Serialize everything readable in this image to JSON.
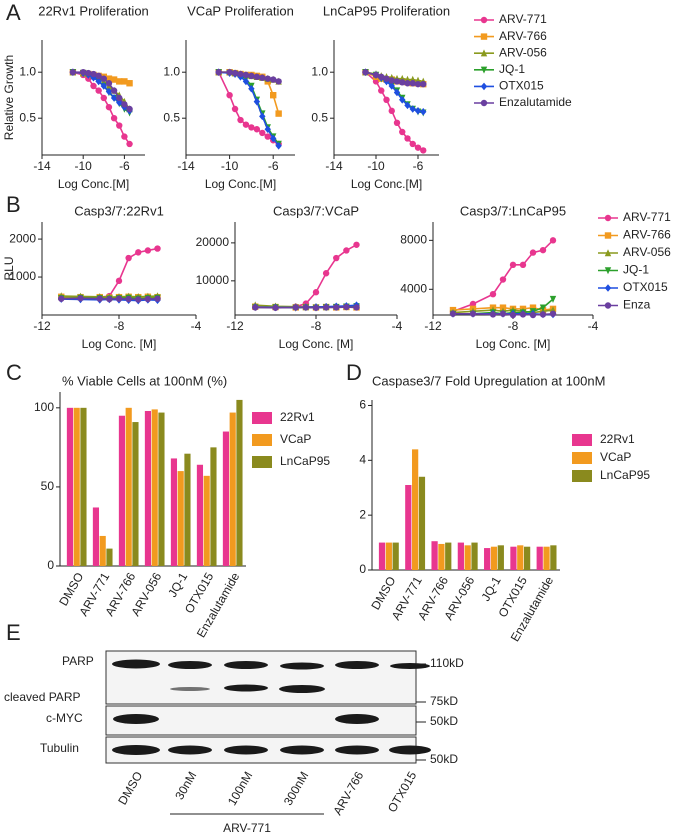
{
  "panel_labels": [
    "A",
    "B",
    "C",
    "D",
    "E"
  ],
  "chart_data": [
    {
      "type": "line",
      "title": "22Rv1 Proliferation",
      "x_label": "Log Conc.[M]",
      "y_label": "Relative Growth",
      "xlim": [
        -14,
        -4
      ],
      "xticks": [
        -14,
        -10,
        -6
      ],
      "ylim": [
        0.1,
        1.35
      ],
      "yticks": [
        0.5,
        {
          "value": 1,
          "label": "1.0"
        }
      ],
      "x": [
        -11,
        -10,
        -9.5,
        -9,
        -8.5,
        -8,
        -7.5,
        -7,
        -6.5,
        -6,
        -5.5
      ],
      "series": [
        {
          "name": "ARV-771",
          "color": "#e8368f",
          "marker": "circle",
          "values": [
            1.0,
            0.97,
            0.93,
            0.85,
            0.8,
            0.72,
            0.62,
            0.5,
            0.42,
            0.3,
            0.22
          ]
        },
        {
          "name": "ARV-766",
          "color": "#f29a1f",
          "marker": "square",
          "values": [
            1.0,
            0.99,
            0.98,
            0.97,
            0.96,
            0.95,
            0.93,
            0.92,
            0.9,
            0.9,
            0.88
          ]
        },
        {
          "name": "ARV-056",
          "color": "#8a9a1e",
          "marker": "triangle",
          "values": [
            1.0,
            0.99,
            0.98,
            0.96,
            0.93,
            0.9,
            0.85,
            0.8,
            0.75,
            0.68,
            0.6
          ]
        },
        {
          "name": "JQ-1",
          "color": "#2ca02c",
          "marker": "triangle-down",
          "values": [
            1.0,
            0.99,
            0.97,
            0.95,
            0.9,
            0.85,
            0.78,
            0.72,
            0.66,
            0.6,
            0.56
          ]
        },
        {
          "name": "OTX015",
          "color": "#1f4fe0",
          "marker": "diamond",
          "values": [
            1.0,
            0.99,
            0.97,
            0.94,
            0.9,
            0.85,
            0.79,
            0.72,
            0.67,
            0.62,
            0.58
          ]
        },
        {
          "name": "Enzalutamide",
          "color": "#6a3fa0",
          "marker": "circle",
          "values": [
            1.0,
            1.0,
            0.99,
            0.98,
            0.96,
            0.93,
            0.88,
            0.8,
            0.72,
            0.65,
            0.6
          ]
        }
      ]
    },
    {
      "type": "line",
      "title": "VCaP Proliferation",
      "x_label": "Log Conc.[M]",
      "xlim": [
        -14,
        -4
      ],
      "xticks": [
        -14,
        -10,
        -6
      ],
      "ylim": [
        0.1,
        1.35
      ],
      "yticks": [
        0.5,
        {
          "value": 1,
          "label": "1.0"
        }
      ],
      "x": [
        -11,
        -10,
        -9.5,
        -9,
        -8.5,
        -8,
        -7.5,
        -7,
        -6.5,
        -6,
        -5.5
      ],
      "series": [
        {
          "name": "ARV-771",
          "color": "#e8368f",
          "marker": "circle",
          "values": [
            1.0,
            0.75,
            0.6,
            0.48,
            0.43,
            0.4,
            0.38,
            0.34,
            0.3,
            0.26,
            0.22
          ]
        },
        {
          "name": "ARV-766",
          "color": "#f29a1f",
          "marker": "square",
          "values": [
            1.0,
            1.0,
            0.99,
            0.98,
            0.97,
            0.97,
            0.96,
            0.95,
            0.9,
            0.75,
            0.55
          ]
        },
        {
          "name": "ARV-056",
          "color": "#8a9a1e",
          "marker": "triangle",
          "values": [
            1.0,
            1.0,
            0.99,
            0.98,
            0.97,
            0.96,
            0.95,
            0.94,
            0.93,
            0.92,
            0.9
          ]
        },
        {
          "name": "JQ-1",
          "color": "#2ca02c",
          "marker": "triangle-down",
          "values": [
            1.0,
            0.99,
            0.98,
            0.96,
            0.93,
            0.85,
            0.7,
            0.55,
            0.4,
            0.3,
            0.22
          ]
        },
        {
          "name": "OTX015",
          "color": "#1f4fe0",
          "marker": "diamond",
          "values": [
            1.0,
            0.99,
            0.98,
            0.95,
            0.9,
            0.82,
            0.68,
            0.52,
            0.38,
            0.28,
            0.2
          ]
        },
        {
          "name": "Enzalutamide",
          "color": "#6a3fa0",
          "marker": "circle",
          "values": [
            1.0,
            1.0,
            0.99,
            0.98,
            0.97,
            0.96,
            0.95,
            0.94,
            0.93,
            0.92,
            0.9
          ]
        }
      ]
    },
    {
      "type": "line",
      "title": "LnCaP95 Proliferation",
      "x_label": "Log Conc.[M]",
      "legend": "outside-right",
      "xlim": [
        -14,
        -4
      ],
      "xticks": [
        -14,
        -10,
        -6
      ],
      "ylim": [
        0.1,
        1.35
      ],
      "yticks": [
        0.5,
        {
          "value": 1,
          "label": "1.0"
        }
      ],
      "x": [
        -11,
        -10,
        -9.5,
        -9,
        -8.5,
        -8,
        -7.5,
        -7,
        -6.5,
        -6,
        -5.5
      ],
      "series": [
        {
          "name": "ARV-771",
          "color": "#e8368f",
          "marker": "circle",
          "values": [
            1.0,
            0.9,
            0.8,
            0.7,
            0.58,
            0.45,
            0.35,
            0.28,
            0.22,
            0.18,
            0.15
          ]
        },
        {
          "name": "ARV-766",
          "color": "#f29a1f",
          "marker": "square",
          "values": [
            1.0,
            0.95,
            0.93,
            0.92,
            0.92,
            0.9,
            0.9,
            0.89,
            0.88,
            0.88,
            0.87
          ]
        },
        {
          "name": "ARV-056",
          "color": "#8a9a1e",
          "marker": "triangle",
          "values": [
            1.0,
            0.98,
            0.96,
            0.95,
            0.94,
            0.93,
            0.93,
            0.92,
            0.92,
            0.91,
            0.9
          ]
        },
        {
          "name": "JQ-1",
          "color": "#2ca02c",
          "marker": "triangle-down",
          "values": [
            1.0,
            0.97,
            0.93,
            0.9,
            0.86,
            0.8,
            0.72,
            0.65,
            0.6,
            0.57,
            0.56
          ]
        },
        {
          "name": "OTX015",
          "color": "#1f4fe0",
          "marker": "diamond",
          "values": [
            1.0,
            0.97,
            0.94,
            0.9,
            0.85,
            0.78,
            0.7,
            0.64,
            0.6,
            0.58,
            0.57
          ]
        },
        {
          "name": "Enzalutamide",
          "color": "#6a3fa0",
          "marker": "circle",
          "values": [
            1.0,
            0.97,
            0.95,
            0.93,
            0.91,
            0.9,
            0.89,
            0.88,
            0.88,
            0.87,
            0.87
          ]
        }
      ]
    },
    {
      "type": "line",
      "title": "Casp3/7:22Rv1",
      "x_label": "Log Conc. [M]",
      "y_label": "RLU",
      "xlim": [
        -12,
        -4
      ],
      "xticks": [
        -12,
        -8,
        -4
      ],
      "ylim": [
        0,
        2450
      ],
      "yticks": [
        1000,
        2000
      ],
      "x": [
        -11,
        -10,
        -9,
        -8.5,
        -8,
        -7.5,
        -7,
        -6.5,
        -6
      ],
      "series": [
        {
          "name": "ARV-771",
          "color": "#e8368f",
          "marker": "circle",
          "values": [
            450,
            460,
            470,
            500,
            900,
            1500,
            1650,
            1700,
            1750
          ]
        },
        {
          "name": "ARV-766",
          "color": "#f29a1f",
          "marker": "square",
          "values": [
            480,
            470,
            470,
            460,
            470,
            480,
            470,
            480,
            470
          ]
        },
        {
          "name": "ARV-056",
          "color": "#8a9a1e",
          "marker": "triangle",
          "values": [
            500,
            490,
            480,
            470,
            480,
            490,
            480,
            490,
            500
          ]
        },
        {
          "name": "JQ-1",
          "color": "#2ca02c",
          "marker": "triangle-down",
          "values": [
            440,
            450,
            440,
            430,
            440,
            450,
            430,
            440,
            450
          ]
        },
        {
          "name": "OTX015",
          "color": "#1f4fe0",
          "marker": "diamond",
          "values": [
            420,
            410,
            400,
            410,
            400,
            390,
            380,
            400,
            390
          ]
        },
        {
          "name": "Enza",
          "color": "#6a3fa0",
          "marker": "circle",
          "values": [
            430,
            440,
            430,
            420,
            430,
            420,
            410,
            420,
            430
          ]
        }
      ]
    },
    {
      "type": "line",
      "title": "Casp3/7:VCaP",
      "x_label": "Log Conc. [M]",
      "xlim": [
        -12,
        -4
      ],
      "xticks": [
        -12,
        -8,
        -4
      ],
      "ylim": [
        1000,
        25500
      ],
      "yticks": [
        10000,
        20000
      ],
      "x": [
        -11,
        -10,
        -9,
        -8.5,
        -8,
        -7.5,
        -7,
        -6.5,
        -6
      ],
      "series": [
        {
          "name": "ARV-771",
          "color": "#e8368f",
          "marker": "circle",
          "values": [
            3000,
            3100,
            3200,
            4000,
            7000,
            12000,
            16000,
            18000,
            19500
          ]
        },
        {
          "name": "ARV-766",
          "color": "#f29a1f",
          "marker": "square",
          "values": [
            3200,
            3100,
            3000,
            3100,
            3000,
            3100,
            3000,
            3100,
            3000
          ]
        },
        {
          "name": "ARV-056",
          "color": "#8a9a1e",
          "marker": "triangle",
          "values": [
            3600,
            3300,
            3200,
            3100,
            3200,
            3100,
            3200,
            3300,
            3400
          ]
        },
        {
          "name": "JQ-1",
          "color": "#2ca02c",
          "marker": "triangle-down",
          "values": [
            3000,
            3000,
            2900,
            3000,
            2900,
            3000,
            3100,
            3200,
            3300
          ]
        },
        {
          "name": "OTX015",
          "color": "#1f4fe0",
          "marker": "diamond",
          "values": [
            3100,
            3000,
            3000,
            3100,
            3100,
            3200,
            3300,
            3400,
            3600
          ]
        },
        {
          "name": "Enza",
          "color": "#6a3fa0",
          "marker": "circle",
          "values": [
            3000,
            2900,
            3000,
            3000,
            2900,
            3000,
            3000,
            3100,
            3000
          ]
        }
      ]
    },
    {
      "type": "line",
      "title": "Casp3/7:LnCaP95",
      "x_label": "Log Conc. [M]",
      "legend": "outside-right",
      "xlim": [
        -12,
        -4
      ],
      "xticks": [
        -12,
        -8,
        -4
      ],
      "ylim": [
        1900,
        9500
      ],
      "yticks": [
        4000,
        8000
      ],
      "x": [
        -11,
        -10,
        -9,
        -8.5,
        -8,
        -7.5,
        -7,
        -6.5,
        -6
      ],
      "series": [
        {
          "name": "ARV-771",
          "color": "#e8368f",
          "marker": "circle",
          "values": [
            2200,
            2800,
            3600,
            4800,
            6000,
            6000,
            7000,
            7200,
            8000
          ]
        },
        {
          "name": "ARV-766",
          "color": "#f29a1f",
          "marker": "square",
          "values": [
            2300,
            2400,
            2500,
            2500,
            2400,
            2400,
            2500,
            2300,
            2400
          ]
        },
        {
          "name": "ARV-056",
          "color": "#8a9a1e",
          "marker": "triangle",
          "values": [
            2100,
            2200,
            2300,
            2200,
            2300,
            2200,
            2100,
            2200,
            2300
          ]
        },
        {
          "name": "JQ-1",
          "color": "#2ca02c",
          "marker": "triangle-down",
          "values": [
            2000,
            2000,
            2100,
            2000,
            2100,
            2100,
            2200,
            2500,
            3200
          ]
        },
        {
          "name": "OTX015",
          "color": "#1f4fe0",
          "marker": "diamond",
          "values": [
            2000,
            2000,
            2000,
            2000,
            2000,
            2000,
            2000,
            1950,
            1950
          ]
        },
        {
          "name": "Enza",
          "color": "#6a3fa0",
          "marker": "circle",
          "values": [
            2000,
            2000,
            1950,
            2000,
            1900,
            1950,
            1900,
            1950,
            2000
          ]
        }
      ]
    },
    {
      "type": "bar",
      "title": "% Viable Cells at 100nM (%)",
      "legend": "outside-right",
      "categories": [
        "DMSO",
        "ARV-771",
        "ARV-766",
        "ARV-056",
        "JQ-1",
        "OTX015",
        "Enzalutamide"
      ],
      "ylim": [
        0,
        110
      ],
      "yticks": [
        0,
        50,
        100
      ],
      "series": [
        {
          "name": "22Rv1",
          "color": "#e8368f",
          "values": [
            100,
            37,
            95,
            98,
            68,
            64,
            85
          ]
        },
        {
          "name": "VCaP",
          "color": "#f29a1f",
          "values": [
            100,
            19,
            100,
            99,
            60,
            57,
            97
          ]
        },
        {
          "name": "LnCaP95",
          "color": "#8a8a1e",
          "values": [
            100,
            11,
            91,
            97,
            71,
            75,
            105
          ]
        }
      ]
    },
    {
      "type": "bar",
      "title": "Caspase3/7 Fold Upregulation at 100nM",
      "legend": "outside-right",
      "categories": [
        "DMSO",
        "ARV-771",
        "ARV-766",
        "ARV-056",
        "JQ-1",
        "OTX015",
        "Enzalutamide"
      ],
      "ylim": [
        0,
        6.2
      ],
      "yticks": [
        0,
        2,
        4,
        6
      ],
      "series": [
        {
          "name": "22Rv1",
          "color": "#e8368f",
          "values": [
            1.0,
            3.1,
            1.05,
            1.0,
            0.8,
            0.85,
            0.85
          ]
        },
        {
          "name": "VCaP",
          "color": "#f29a1f",
          "values": [
            1.0,
            4.4,
            0.95,
            0.9,
            0.85,
            0.9,
            0.85
          ]
        },
        {
          "name": "LnCaP95",
          "color": "#8a8a1e",
          "values": [
            1.0,
            3.4,
            1.0,
            1.0,
            0.9,
            0.85,
            0.9
          ]
        }
      ]
    }
  ],
  "blot": {
    "rows": [
      "PARP",
      "cleaved PARP",
      "c-MYC",
      "Tubulin"
    ],
    "markers": [
      "110kD",
      "75kD",
      "50kD",
      "50kD"
    ],
    "lanes": [
      "DMSO",
      "30nM",
      "100nM",
      "300nM",
      "ARV-766",
      "OTX015"
    ],
    "group": "ARV-771"
  }
}
